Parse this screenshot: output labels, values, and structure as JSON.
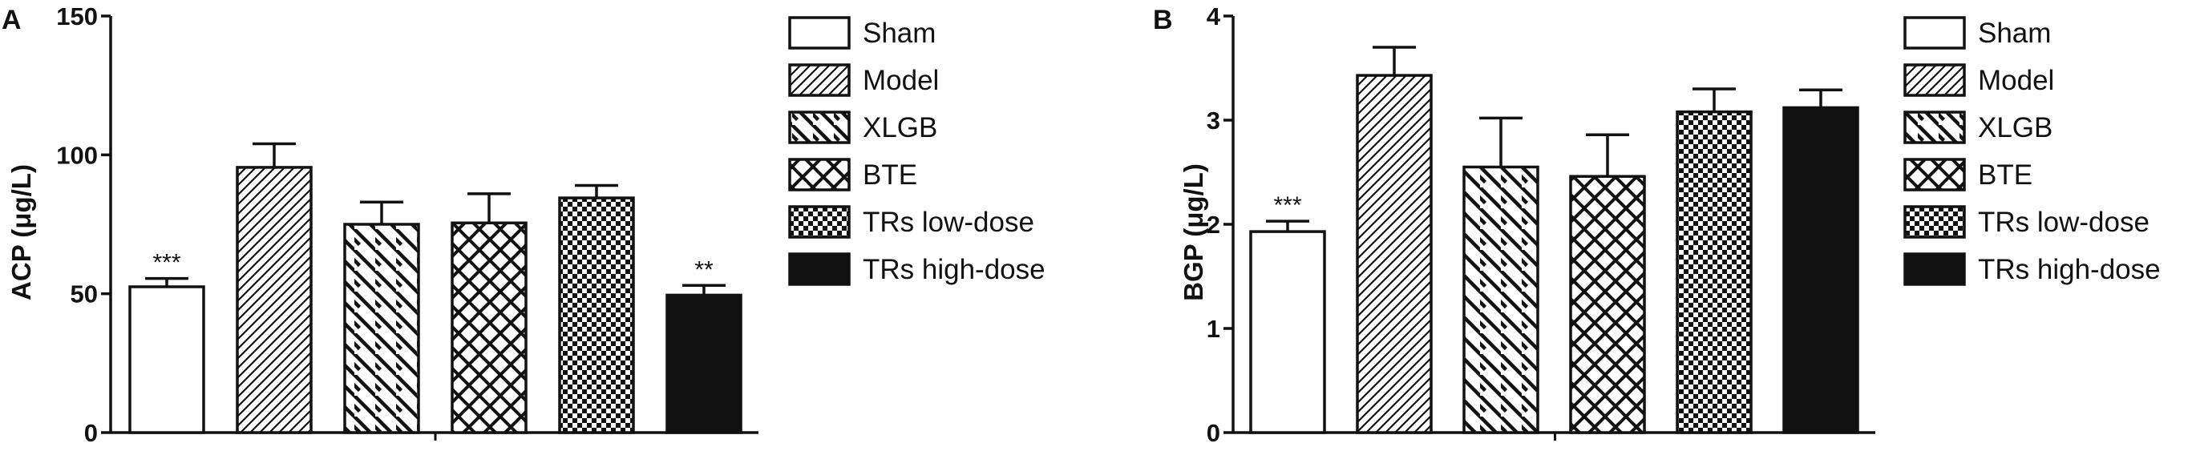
{
  "panels": [
    {
      "id": "A",
      "letter": "A"
    },
    {
      "id": "B",
      "letter": "B"
    }
  ],
  "chart_data": [
    {
      "type": "bar",
      "panel": "A",
      "categories": [
        "Sham",
        "Model",
        "XLGB",
        "BTE",
        "TRs low-dose",
        "TRs high-dose"
      ],
      "values": [
        52.5,
        95.5,
        75,
        75.5,
        84.5,
        49.5
      ],
      "errors": [
        3,
        8.5,
        8,
        10.5,
        4.5,
        3.5
      ],
      "annotations": [
        "***",
        "",
        "",
        "",
        "",
        "**"
      ],
      "ylabel": "ACP (μg/L)",
      "xlabel": "",
      "ylim": [
        0,
        150
      ],
      "yticks": [
        "0",
        "50",
        "100",
        "150"
      ],
      "legend": [
        "Sham",
        "Model",
        "XLGB",
        "BTE",
        "TRs low-dose",
        "TRs high-dose"
      ],
      "legend_position": "right",
      "grid": false
    },
    {
      "type": "bar",
      "panel": "B",
      "categories": [
        "Sham",
        "Model",
        "XLGB",
        "BTE",
        "TRs low-dose",
        "TRs high-dose"
      ],
      "values": [
        1.93,
        3.43,
        2.55,
        2.46,
        3.08,
        3.12
      ],
      "errors": [
        0.1,
        0.27,
        0.47,
        0.4,
        0.22,
        0.17
      ],
      "annotations": [
        "***",
        "",
        "",
        "",
        "",
        ""
      ],
      "ylabel": "BGP (μg/L)",
      "xlabel": "",
      "ylim": [
        0,
        4
      ],
      "yticks": [
        "0",
        "1",
        "2",
        "3",
        "4"
      ],
      "legend": [
        "Sham",
        "Model",
        "XLGB",
        "BTE",
        "TRs low-dose",
        "TRs high-dose"
      ],
      "legend_position": "right",
      "grid": false
    }
  ],
  "patterns": [
    "empty",
    "diag-right",
    "diag-left",
    "crosshatch",
    "checker",
    "solid"
  ],
  "colors": {
    "ink": "#111111",
    "background": "#ffffff"
  }
}
